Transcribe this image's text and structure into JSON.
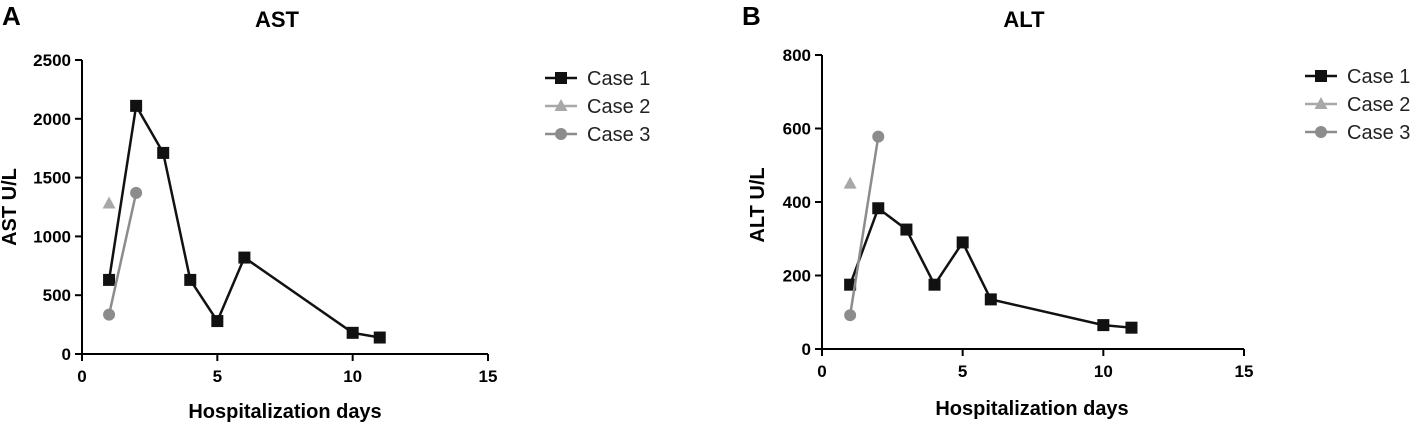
{
  "chart_data": [
    {
      "type": "line",
      "panel": "A",
      "title": "AST",
      "xlabel": "Hospitalization days",
      "ylabel": "AST U/L",
      "xlim": [
        0,
        15
      ],
      "ylim": [
        0,
        2500
      ],
      "xticks": [
        0,
        5,
        10,
        15
      ],
      "yticks": [
        0,
        500,
        1000,
        1500,
        2000,
        2500
      ],
      "grid": false,
      "legend_position": "right",
      "series": [
        {
          "name": "Case 1",
          "marker": "square",
          "color": "#111111",
          "x": [
            1,
            2,
            3,
            4,
            5,
            6,
            10,
            11
          ],
          "y": [
            630,
            2110,
            1710,
            630,
            280,
            820,
            180,
            140
          ]
        },
        {
          "name": "Case 2",
          "marker": "triangle",
          "color": "#a8a8a8",
          "x": [
            1
          ],
          "y": [
            1280
          ]
        },
        {
          "name": "Case 3",
          "marker": "circle",
          "color": "#8c8c8c",
          "x": [
            1,
            2
          ],
          "y": [
            335,
            1370
          ]
        }
      ]
    },
    {
      "type": "line",
      "panel": "B",
      "title": "ALT",
      "xlabel": "Hospitalization days",
      "ylabel": "ALT U/L",
      "xlim": [
        0,
        15
      ],
      "ylim": [
        0,
        800
      ],
      "xticks": [
        0,
        5,
        10,
        15
      ],
      "yticks": [
        0,
        200,
        400,
        600,
        800
      ],
      "grid": false,
      "legend_position": "right",
      "series": [
        {
          "name": "Case 1",
          "marker": "square",
          "color": "#111111",
          "x": [
            1,
            2,
            3,
            4,
            5,
            6,
            10,
            11
          ],
          "y": [
            175,
            383,
            325,
            175,
            290,
            135,
            65,
            58
          ]
        },
        {
          "name": "Case 2",
          "marker": "triangle",
          "color": "#a8a8a8",
          "x": [
            1
          ],
          "y": [
            450
          ]
        },
        {
          "name": "Case 3",
          "marker": "circle",
          "color": "#8c8c8c",
          "x": [
            1,
            2
          ],
          "y": [
            92,
            578
          ]
        }
      ]
    }
  ]
}
